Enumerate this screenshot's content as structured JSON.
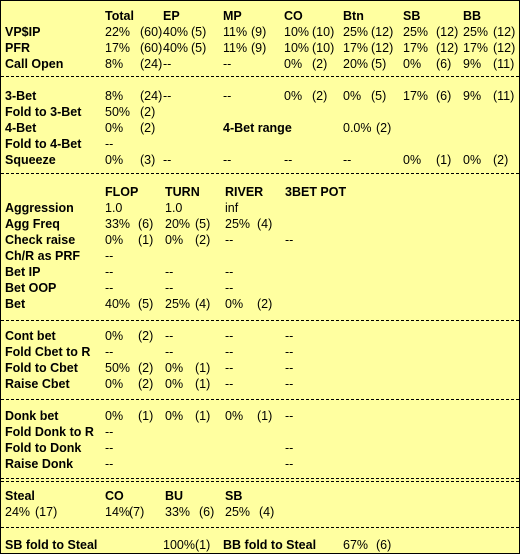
{
  "preflop": {
    "headers": [
      "Total",
      "EP",
      "MP",
      "CO",
      "Btn",
      "SB",
      "BB"
    ],
    "rows": [
      {
        "label": "VP$IP",
        "values": [
          [
            "22%",
            "(60)"
          ],
          [
            "40%",
            "(5)"
          ],
          [
            "11%",
            "(9)"
          ],
          [
            "10%",
            "(10)"
          ],
          [
            "25%",
            "(12)"
          ],
          [
            "25%",
            "(12)"
          ],
          [
            "25%",
            "(12)"
          ]
        ]
      },
      {
        "label": "PFR",
        "values": [
          [
            "17%",
            "(60)"
          ],
          [
            "40%",
            "(5)"
          ],
          [
            "11%",
            "(9)"
          ],
          [
            "10%",
            "(10)"
          ],
          [
            "17%",
            "(12)"
          ],
          [
            "17%",
            "(12)"
          ],
          [
            "17%",
            "(12)"
          ]
        ]
      },
      {
        "label": "Call Open",
        "values": [
          [
            "8%",
            "(24)"
          ],
          [
            "--",
            ""
          ],
          [
            "--",
            ""
          ],
          [
            "0%",
            "(2)"
          ],
          [
            "20%",
            "(5)"
          ],
          [
            "0%",
            "(6)"
          ],
          [
            "9%",
            "(11)"
          ]
        ]
      }
    ]
  },
  "threebet": {
    "rows": [
      {
        "label": "3-Bet",
        "values": [
          [
            "8%",
            "(24)"
          ],
          [
            "--",
            ""
          ],
          [
            "--",
            ""
          ],
          [
            "0%",
            "(2)"
          ],
          [
            "0%",
            "(5)"
          ],
          [
            "17%",
            "(6)"
          ],
          [
            "9%",
            "(11)"
          ]
        ]
      },
      {
        "label": "Fold to 3-Bet",
        "values": [
          [
            "50%",
            "(2)"
          ]
        ]
      },
      {
        "label": "4-Bet",
        "values": [
          [
            "0%",
            "(2)"
          ]
        ],
        "extra_label": "4-Bet range",
        "extra_value": "0.0%",
        "extra_count": "(2)"
      },
      {
        "label": "Fold to 4-Bet",
        "values": [
          [
            "--",
            ""
          ]
        ]
      },
      {
        "label": "Squeeze",
        "values": [
          [
            "0%",
            "(3)"
          ],
          [
            "--",
            ""
          ],
          [
            "--",
            ""
          ],
          [
            "--",
            ""
          ],
          [
            "--",
            ""
          ],
          [
            "0%",
            "(1)"
          ],
          [
            "0%",
            "(2)"
          ]
        ]
      }
    ]
  },
  "postflop": {
    "headers": [
      "FLOP",
      "TURN",
      "RIVER",
      "3BET POT"
    ],
    "rows": [
      {
        "label": "Aggression",
        "values": [
          [
            "1.0",
            ""
          ],
          [
            "1.0",
            ""
          ],
          [
            "inf",
            ""
          ]
        ]
      },
      {
        "label": "Agg Freq",
        "values": [
          [
            "33%",
            "(6)"
          ],
          [
            "20%",
            "(5)"
          ],
          [
            "25%",
            "(4)"
          ]
        ]
      },
      {
        "label": "Check raise",
        "values": [
          [
            "0%",
            "(1)"
          ],
          [
            "0%",
            "(2)"
          ],
          [
            "--",
            ""
          ],
          [
            "--",
            ""
          ]
        ]
      },
      {
        "label": "Ch/R as PRF",
        "values": [
          [
            "--",
            ""
          ]
        ]
      },
      {
        "label": "Bet IP",
        "values": [
          [
            "--",
            ""
          ],
          [
            "--",
            ""
          ],
          [
            "--",
            ""
          ]
        ]
      },
      {
        "label": "Bet OOP",
        "values": [
          [
            "--",
            ""
          ],
          [
            "--",
            ""
          ],
          [
            "--",
            ""
          ]
        ]
      },
      {
        "label": "Bet",
        "values": [
          [
            "40%",
            "(5)"
          ],
          [
            "25%",
            "(4)"
          ],
          [
            "0%",
            "(2)"
          ]
        ]
      }
    ]
  },
  "cbet": {
    "rows": [
      {
        "label": "Cont bet",
        "values": [
          [
            "0%",
            "(2)"
          ],
          [
            "--",
            ""
          ],
          [
            "--",
            ""
          ],
          [
            "--",
            ""
          ]
        ]
      },
      {
        "label": "Fold Cbet to R",
        "values": [
          [
            "--",
            ""
          ],
          [
            "--",
            ""
          ],
          [
            "--",
            ""
          ],
          [
            "--",
            ""
          ]
        ]
      },
      {
        "label": "Fold to Cbet",
        "values": [
          [
            "50%",
            "(2)"
          ],
          [
            "0%",
            "(1)"
          ],
          [
            "--",
            ""
          ],
          [
            "--",
            ""
          ]
        ]
      },
      {
        "label": "Raise Cbet",
        "values": [
          [
            "0%",
            "(2)"
          ],
          [
            "0%",
            "(1)"
          ],
          [
            "--",
            ""
          ],
          [
            "--",
            ""
          ]
        ]
      }
    ]
  },
  "donk": {
    "rows": [
      {
        "label": "Donk bet",
        "values": [
          [
            "0%",
            "(1)"
          ],
          [
            "0%",
            "(1)"
          ],
          [
            "0%",
            "(1)"
          ],
          [
            "--",
            ""
          ]
        ]
      },
      {
        "label": "Fold Donk to R",
        "values": [
          [
            "--",
            ""
          ]
        ]
      },
      {
        "label": "Fold to Donk",
        "values": [
          [
            "--",
            ""
          ],
          [
            "",
            ""
          ],
          [
            "",
            ""
          ],
          [
            "--",
            ""
          ]
        ]
      },
      {
        "label": "Raise Donk",
        "values": [
          [
            "--",
            ""
          ],
          [
            "",
            ""
          ],
          [
            "",
            ""
          ],
          [
            "--",
            ""
          ]
        ]
      }
    ]
  },
  "steal": {
    "label": "Steal",
    "total": "24%",
    "total_count": "(17)",
    "headers": [
      "CO",
      "BU",
      "SB"
    ],
    "values": [
      [
        "14%",
        "(7)"
      ],
      [
        "33%",
        "(6)"
      ],
      [
        "25%",
        "(4)"
      ]
    ]
  },
  "fold_steal": {
    "sb_label": "SB fold to Steal",
    "sb_value": "100%(1)",
    "bb_label": "BB fold to Steal",
    "bb_value": "67%",
    "bb_count": "(6)"
  }
}
